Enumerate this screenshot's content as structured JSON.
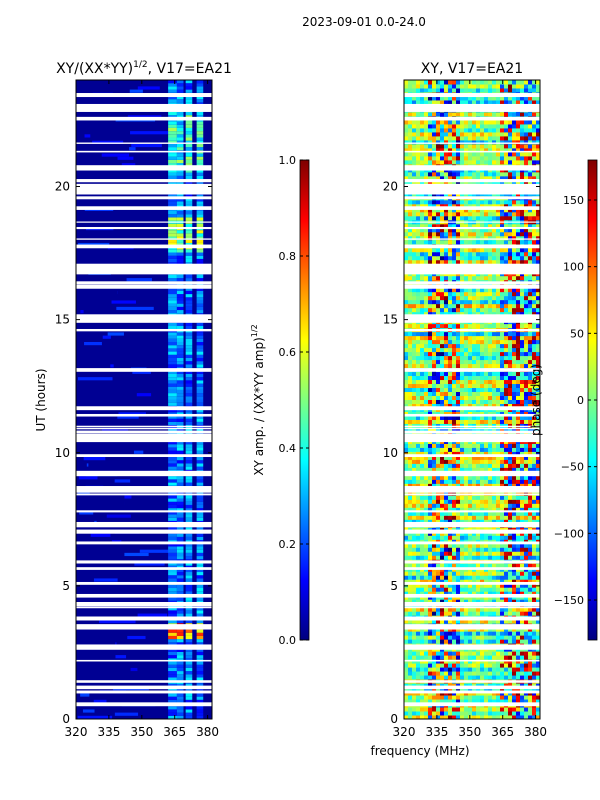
{
  "suptitle": "2023-09-01 0.0-24.0",
  "xlabel": "frequency (MHz)",
  "chart_data": [
    {
      "type": "heatmap",
      "title": "XY/(XX*YY)^{1/2}, V17=EA21",
      "title_main": "XY/(XX*YY)",
      "title_sup": "1/2",
      "title_tail": ", V17=EA21",
      "ylabel": "UT (hours)",
      "xlabel": "",
      "xlim": [
        320,
        382
      ],
      "ylim": [
        0,
        24
      ],
      "xticks": [
        320,
        335,
        350,
        365,
        380
      ],
      "yticks": [
        0,
        5,
        10,
        15,
        20
      ],
      "colorbar": {
        "label": "XY amp. / (XX*YY amp)^{1/2}",
        "label_main": "XY amp. / (XX*YY amp)",
        "label_sup": "1/2",
        "range": [
          0.0,
          1.0
        ],
        "ticks": [
          "0.0",
          "0.2",
          "0.4",
          "0.6",
          "0.8",
          "1.0"
        ]
      },
      "description_bands_mhz": [
        [
          362,
          366
        ],
        [
          366,
          369
        ],
        [
          370,
          373
        ],
        [
          375,
          378
        ]
      ]
    },
    {
      "type": "heatmap",
      "title": "XY, V17=EA21",
      "ylabel": "",
      "xlabel": "frequency (MHz)",
      "xlim": [
        320,
        382
      ],
      "ylim": [
        0,
        24
      ],
      "xticks": [
        320,
        335,
        350,
        365,
        380
      ],
      "yticks": [
        0,
        5,
        10,
        15,
        20
      ],
      "colorbar": {
        "label": "phase (deg)",
        "range": [
          -180,
          180
        ],
        "ticks": [
          "−150",
          "−100",
          "−50",
          "0",
          "50",
          "100",
          "150"
        ]
      }
    }
  ],
  "colors": {
    "jet": [
      "#00007f",
      "#0000ff",
      "#007fff",
      "#00ffff",
      "#7fff7f",
      "#ffff00",
      "#ff7f00",
      "#ff0000",
      "#7f0000"
    ]
  }
}
